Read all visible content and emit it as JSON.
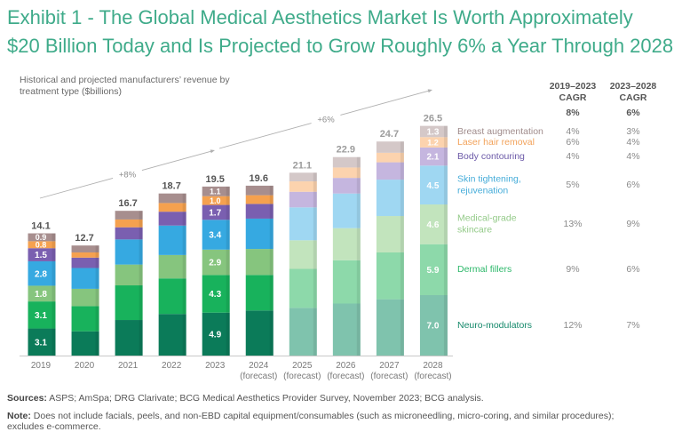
{
  "header": {
    "title_lines": [
      "Exhibit 1 - The Global Medical Aesthetics Market Is Worth Approximately",
      "$20 Billion Today and Is Projected to Grow Roughly 6% a Year Through 2028"
    ],
    "subtitle_lines": [
      "Historical and projected manufacturers’ revenue by",
      "treatment type ($billions)"
    ]
  },
  "chart_data": {
    "type": "bar",
    "stacked": true,
    "title": "Exhibit 1 - The Global Medical Aesthetics Market Is Worth Approximately $20 Billion Today and Is Projected to Grow Roughly 6% a Year Through 2028",
    "subtitle": "Historical and projected manufacturers’ revenue by treatment type ($billions)",
    "xlabel": "",
    "ylabel": "$billions",
    "ylim": [
      0,
      27
    ],
    "grid": false,
    "legend_position": "right",
    "categories": [
      "2019",
      "2020",
      "2021",
      "2022",
      "2023",
      "2024",
      "2025",
      "2026",
      "2027",
      "2028"
    ],
    "category_notes": [
      "",
      "",
      "",
      "",
      "",
      "(forecast)",
      "(forecast)",
      "(forecast)",
      "(forecast)",
      "(forecast)"
    ],
    "faded": [
      false,
      false,
      false,
      false,
      false,
      false,
      true,
      true,
      true,
      true
    ],
    "totals": [
      14.1,
      12.7,
      16.7,
      18.7,
      19.5,
      19.6,
      21.1,
      22.9,
      24.7,
      26.5
    ],
    "labeled_categories": [
      "2019",
      "2023",
      "2028"
    ],
    "series": [
      {
        "name": "Neuro-modulators",
        "color": "#0b7b59",
        "color_faded": "#7fc3ad",
        "label_color": "#15896b",
        "values": [
          3.1,
          2.8,
          4.1,
          4.8,
          4.9,
          5.2,
          5.5,
          6.0,
          6.5,
          7.0
        ],
        "cagr": [
          "12%",
          "7%"
        ]
      },
      {
        "name": "Dermal fillers",
        "color": "#18b25c",
        "color_faded": "#8dd9aa",
        "label_color": "#2db86a",
        "values": [
          3.1,
          2.9,
          4.0,
          4.1,
          4.3,
          4.1,
          4.5,
          5.0,
          5.4,
          5.9
        ],
        "cagr": [
          "9%",
          "6%"
        ]
      },
      {
        "name": "Medical-grade skincare",
        "color": "#86c57e",
        "color_faded": "#c2e4bd",
        "label_color": "#93ca88",
        "values": [
          1.8,
          2.0,
          2.4,
          2.7,
          2.9,
          3.0,
          3.3,
          3.7,
          4.2,
          4.6
        ],
        "cagr": [
          "13%",
          "9%"
        ]
      },
      {
        "name": "Skin tightening, rejuvenation",
        "color": "#36a9e1",
        "color_faded": "#9fd7f2",
        "label_color": "#45acd9",
        "values": [
          2.8,
          2.4,
          2.9,
          3.4,
          3.4,
          3.5,
          3.8,
          4.0,
          4.2,
          4.5
        ],
        "cagr": [
          "5%",
          "6%"
        ]
      },
      {
        "name": "Body contouring",
        "color": "#7a5fb0",
        "color_faded": "#c5b6df",
        "label_color": "#6c5aa8",
        "values": [
          1.5,
          1.2,
          1.4,
          1.6,
          1.7,
          1.7,
          1.8,
          1.8,
          2.0,
          2.1
        ],
        "cagr": [
          "4%",
          "4%"
        ]
      },
      {
        "name": "Laser hair removal",
        "color": "#f5a14f",
        "color_faded": "#fcd3ae",
        "label_color": "#f2a25a",
        "values": [
          0.8,
          0.6,
          0.9,
          1.0,
          1.0,
          1.0,
          1.2,
          1.2,
          1.1,
          1.2
        ],
        "cagr": [
          "6%",
          "4%"
        ]
      },
      {
        "name": "Breast augmentation",
        "color": "#a78e8e",
        "color_faded": "#d4c8c8",
        "label_color": "#a08c8c",
        "values": [
          0.9,
          0.8,
          1.0,
          1.1,
          1.1,
          1.1,
          1.0,
          1.2,
          1.3,
          1.3
        ],
        "cagr": [
          "4%",
          "3%"
        ]
      }
    ],
    "annotations": [
      {
        "label": "+8%",
        "from": "2019",
        "to": "2023"
      },
      {
        "label": "+6%",
        "from": "2023",
        "to": "2028"
      }
    ],
    "cagr_table": {
      "columns": [
        {
          "period": "2019–2023",
          "label": "CAGR",
          "overall": "8%"
        },
        {
          "period": "2023–2028",
          "label": "CAGR",
          "overall": "6%"
        }
      ]
    },
    "colors": {
      "title": "#3fab8a",
      "total_historical": "#555555",
      "total_faded": "#9c9c9c",
      "axis": "#c8c8c8",
      "trend_line": "#b0b0b0"
    }
  },
  "footer": {
    "sources_label": "Sources:",
    "sources_text": "ASPS; AmSpa; DRG Clarivate; BCG Medical Aesthetics Provider Survey, November 2023; BCG analysis.",
    "note_label": "Note:",
    "note_text": "Does not include facials, peels, and non-EBD capital equipment/consumables (such as microneedling, micro-coring, and similar procedures); excludes e-commerce."
  }
}
